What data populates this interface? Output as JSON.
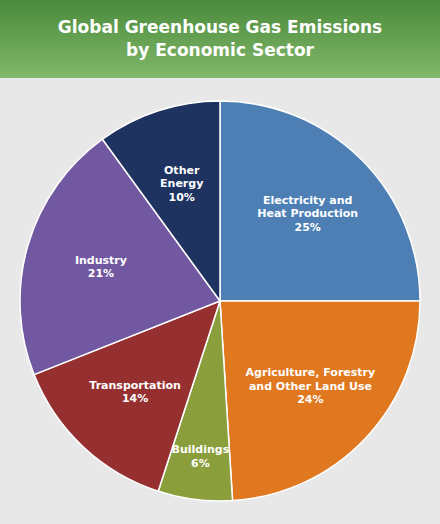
{
  "chart_data": {
    "type": "pie",
    "title": "Global Greenhouse Gas Emissions\nby Economic Sector",
    "categories": [
      "Electricity and\nHeat Production",
      "Agriculture, Forestry\nand Other Land Use",
      "Buildings",
      "Transportation",
      "Industry",
      "Other\nEnergy"
    ],
    "values": [
      25,
      24,
      6,
      14,
      21,
      10
    ],
    "value_labels": [
      "25%",
      "24%",
      "6%",
      "14%",
      "21%",
      "10%"
    ],
    "colors": [
      "#4d7fb5",
      "#e07820",
      "#8a9e3c",
      "#963030",
      "#7158a0",
      "#1e3360"
    ]
  }
}
